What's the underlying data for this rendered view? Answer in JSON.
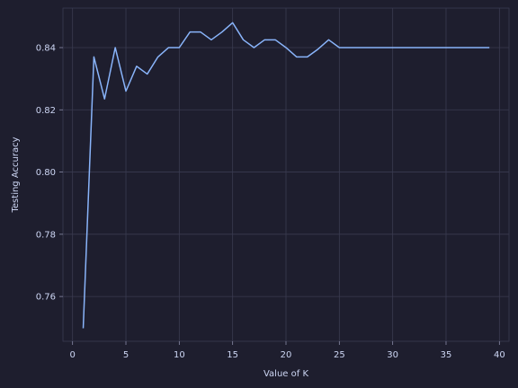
{
  "chart_data": {
    "type": "line",
    "title": "",
    "xlabel": "Value of K",
    "ylabel": "Testing Accuracy",
    "xlim": [
      -0.9,
      40.9
    ],
    "ylim": [
      0.7456,
      0.8527
    ],
    "xticks": [
      0,
      5,
      10,
      15,
      20,
      25,
      30,
      35,
      40
    ],
    "xtick_labels": [
      "0",
      "5",
      "10",
      "15",
      "20",
      "25",
      "30",
      "35",
      "40"
    ],
    "yticks": [
      0.76,
      0.78,
      0.8,
      0.82,
      0.84
    ],
    "ytick_labels": [
      "0.76",
      "0.78",
      "0.80",
      "0.82",
      "0.84"
    ],
    "grid": true,
    "legend": "none",
    "colors": {
      "background": "#1e1e2e",
      "line": "#89b4fa",
      "grid": "#3a3b50",
      "text": "#cdd6f4"
    },
    "series": [
      {
        "x": [
          1,
          2,
          3,
          4,
          5,
          6,
          7,
          8,
          9,
          10,
          11,
          12,
          13,
          14,
          15,
          16,
          17,
          18,
          19,
          20,
          21,
          22,
          23,
          24,
          25,
          26,
          27,
          28,
          29,
          30,
          31,
          32,
          33,
          34,
          35,
          36,
          37,
          38,
          39
        ],
        "values": [
          0.75,
          0.837,
          0.8235,
          0.84,
          0.826,
          0.834,
          0.8315,
          0.837,
          0.84,
          0.84,
          0.845,
          0.845,
          0.8425,
          0.845,
          0.848,
          0.8425,
          0.84,
          0.8425,
          0.8425,
          0.84,
          0.837,
          0.837,
          0.8395,
          0.8425,
          0.84,
          0.84,
          0.84,
          0.84,
          0.84,
          0.84,
          0.84,
          0.84,
          0.84,
          0.84,
          0.84,
          0.84,
          0.84,
          0.84,
          0.84
        ]
      }
    ]
  }
}
